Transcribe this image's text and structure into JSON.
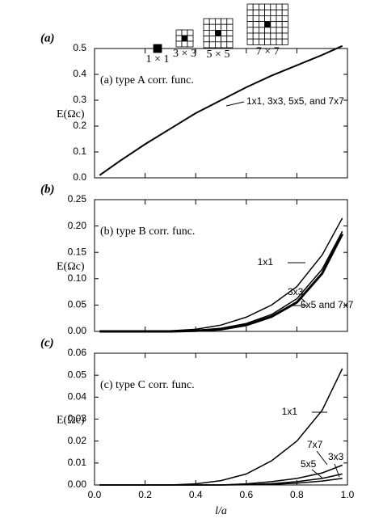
{
  "chart_data": [
    {
      "type": "line",
      "panel_label": "(a)",
      "subtitle": "(a) type A corr. func.",
      "ylabel": "E(Ωc)",
      "window_labels": [
        "1 × 1",
        "3 × 3",
        "5 × 5",
        "7 × 7"
      ],
      "x": [
        0.02,
        0.1,
        0.2,
        0.3,
        0.4,
        0.5,
        0.6,
        0.7,
        0.8,
        0.9,
        0.98
      ],
      "series": [
        {
          "name": "1x1, 3x3, 5x5, and 7x7",
          "color": "#000000",
          "line_width": 2,
          "values": [
            0.01,
            0.065,
            0.13,
            0.19,
            0.25,
            0.3,
            0.35,
            0.395,
            0.435,
            0.475,
            0.51
          ]
        }
      ],
      "xlim": [
        0,
        1
      ],
      "xticks": [
        0,
        0.2,
        0.4,
        0.6,
        0.8,
        1
      ],
      "ylim": [
        0,
        0.5
      ],
      "yticks": [
        {
          "value": 0,
          "label": "0.0"
        },
        0.1,
        0.2,
        0.3,
        0.4,
        0.5
      ]
    },
    {
      "type": "line",
      "panel_label": "(b)",
      "subtitle": "(b) type B corr. func.",
      "ylabel": "E(Ωc)",
      "x": [
        0.02,
        0.1,
        0.2,
        0.3,
        0.4,
        0.5,
        0.6,
        0.7,
        0.8,
        0.9,
        0.98
      ],
      "series": [
        {
          "name": "1x1",
          "color": "#000000",
          "line_width": 1.5,
          "values": [
            0,
            0,
            0,
            0.001,
            0.004,
            0.012,
            0.027,
            0.05,
            0.085,
            0.145,
            0.215
          ]
        },
        {
          "name": "3x3",
          "color": "#000000",
          "line_width": 1.5,
          "values": [
            0,
            0,
            0,
            0.0005,
            0.002,
            0.006,
            0.015,
            0.032,
            0.062,
            0.118,
            0.19
          ]
        },
        {
          "name": "5x5 and 7x7",
          "color": "#000000",
          "line_width": 3,
          "values": [
            0,
            0,
            0,
            0,
            0.001,
            0.004,
            0.012,
            0.028,
            0.055,
            0.11,
            0.185
          ]
        }
      ],
      "xlim": [
        0,
        1
      ],
      "xticks": [
        0,
        0.2,
        0.4,
        0.6,
        0.8,
        1
      ],
      "ylim": [
        0,
        0.25
      ],
      "yticks": [
        {
          "value": 0,
          "label": "0.00"
        },
        0.05,
        {
          "value": 0.1,
          "label": "0.10"
        },
        0.15,
        {
          "value": 0.2,
          "label": "0.20"
        },
        0.25
      ]
    },
    {
      "type": "line",
      "panel_label": "(c)",
      "subtitle": "(c) type C corr. func.",
      "ylabel": "E(Ωc)",
      "xlabel": "l/a",
      "x": [
        0.02,
        0.1,
        0.2,
        0.3,
        0.4,
        0.5,
        0.6,
        0.7,
        0.8,
        0.9,
        0.98
      ],
      "series": [
        {
          "name": "1x1",
          "color": "#000000",
          "line_width": 1.5,
          "values": [
            0,
            0,
            0,
            0,
            0.0005,
            0.002,
            0.005,
            0.011,
            0.02,
            0.034,
            0.053
          ]
        },
        {
          "name": "7x7",
          "color": "#000000",
          "line_width": 1.5,
          "values": [
            0,
            0,
            0,
            0,
            0,
            0,
            0.0005,
            0.0015,
            0.003,
            0.0055,
            0.009
          ]
        },
        {
          "name": "3x3",
          "color": "#000000",
          "line_width": 1.5,
          "values": [
            0,
            0,
            0,
            0,
            0,
            0,
            0.0002,
            0.0006,
            0.0015,
            0.003,
            0.005
          ]
        },
        {
          "name": "5x5",
          "color": "#000000",
          "line_width": 1.5,
          "values": [
            0,
            0,
            0,
            0,
            0,
            0,
            0.0001,
            0.0003,
            0.0008,
            0.0018,
            0.003
          ]
        }
      ],
      "xlim": [
        0,
        1
      ],
      "xticks": [
        {
          "value": 0,
          "label": "0.0"
        },
        0.2,
        0.4,
        0.6,
        0.8,
        {
          "value": 1,
          "label": "1.0"
        }
      ],
      "ylim": [
        0,
        0.06
      ],
      "yticks": [
        {
          "value": 0,
          "label": "0.00"
        },
        0.01,
        0.02,
        0.03,
        0.04,
        0.05,
        0.06
      ]
    }
  ]
}
